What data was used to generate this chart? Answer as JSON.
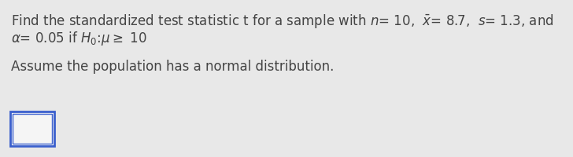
{
  "line1": "Find the standardized test statistic t for a sample with $n$= 10,  $\\bar{x}$= 8.7,  $s$= 1.3, and",
  "line2": "$\\alpha$= 0.05 if $H_0$:$\\mu$$\\geq$ 10",
  "line3": "Assume the population has a normal distribution.",
  "bg_color": "#e8e8e8",
  "text_color": "#444444",
  "box_edge_color": "#3a5fcd",
  "box_face_color": "#f5f5f5",
  "font_size": 12.0
}
